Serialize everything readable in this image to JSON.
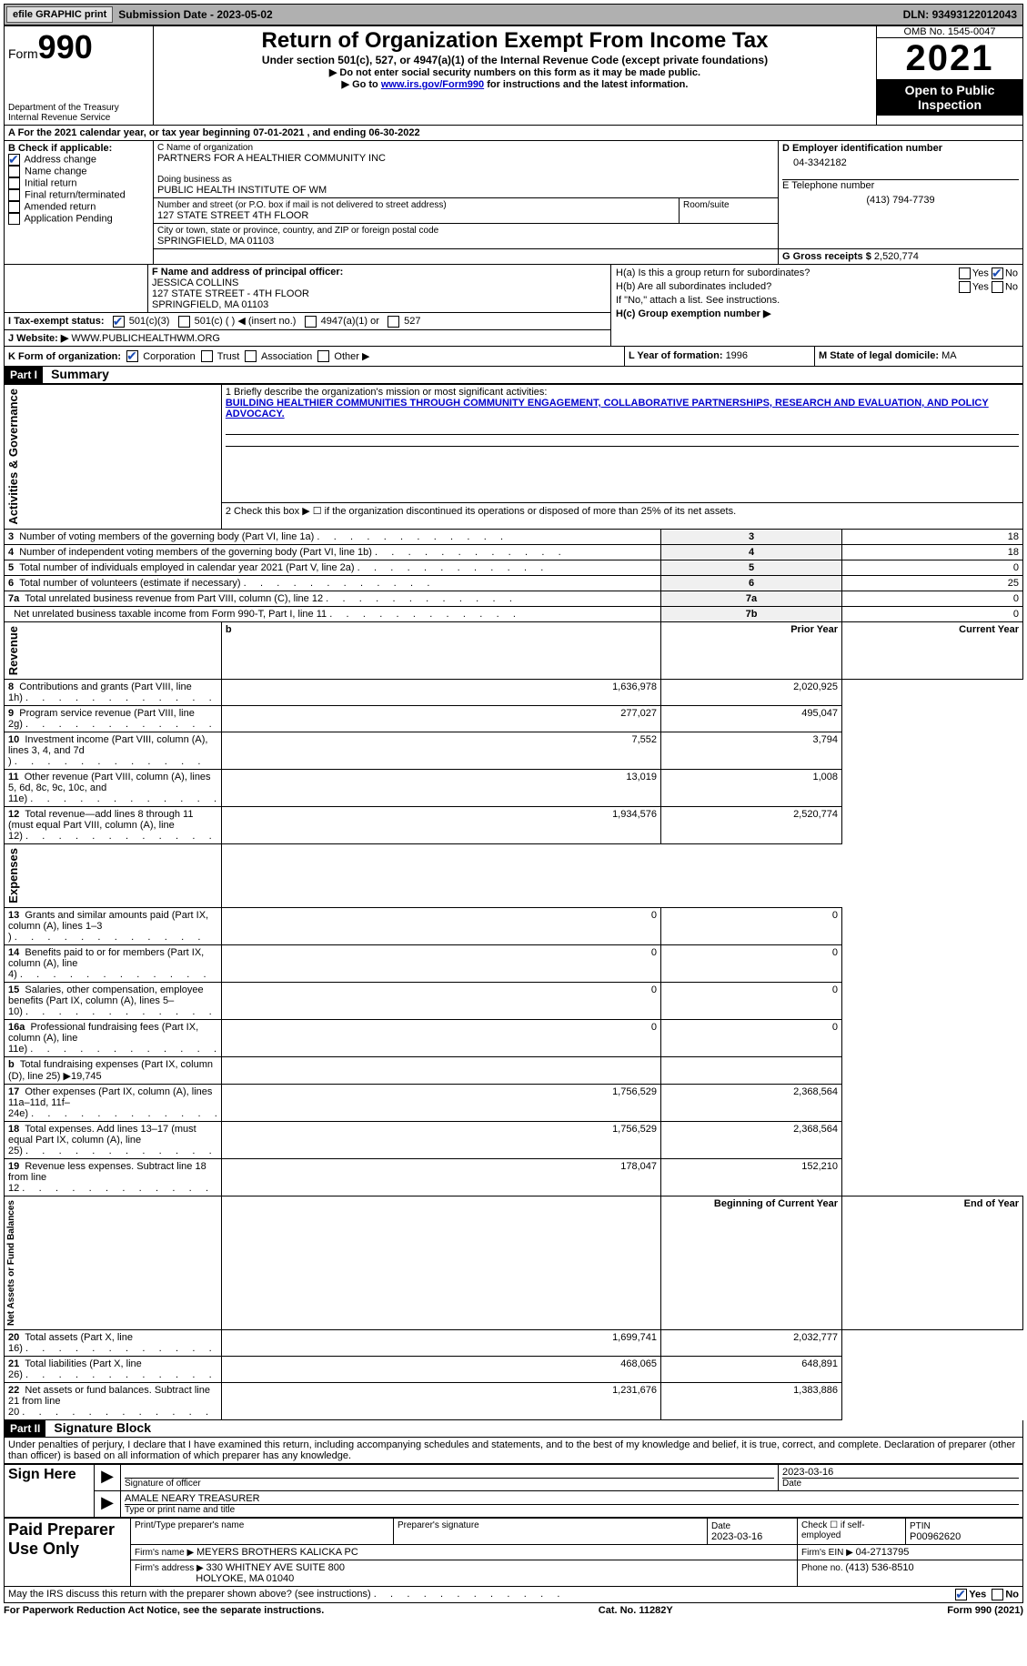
{
  "topbar": {
    "efile": "efile GRAPHIC print",
    "subdate_label": "Submission Date - ",
    "subdate": "2023-05-02",
    "dln_label": "DLN: ",
    "dln": "93493122012043"
  },
  "header": {
    "form_prefix": "Form",
    "form_num": "990",
    "dept": "Department of the Treasury Internal Revenue Service",
    "title": "Return of Organization Exempt From Income Tax",
    "subtitle": "Under section 501(c), 527, or 4947(a)(1) of the Internal Revenue Code (except private foundations)",
    "instr1": "▶ Do not enter social security numbers on this form as it may be made public.",
    "instr2_pre": "▶ Go to ",
    "instr2_link": "www.irs.gov/Form990",
    "instr2_post": " for instructions and the latest information.",
    "omb": "OMB No. 1545-0047",
    "year": "2021",
    "openpub": "Open to Public Inspection"
  },
  "A": {
    "text": "A For the 2021 calendar year, or tax year beginning 07-01-2021    , and ending 06-30-2022"
  },
  "B": {
    "label": "B Check if applicable:",
    "items": [
      {
        "label": "Address change",
        "checked": true
      },
      {
        "label": "Name change",
        "checked": false
      },
      {
        "label": "Initial return",
        "checked": false
      },
      {
        "label": "Final return/terminated",
        "checked": false
      },
      {
        "label": "Amended return",
        "checked": false
      },
      {
        "label": "Application Pending",
        "checked": false
      }
    ]
  },
  "C": {
    "name_label": "C Name of organization",
    "name": "PARTNERS FOR A HEALTHIER COMMUNITY INC",
    "dba_label": "Doing business as",
    "dba": "PUBLIC HEALTH INSTITUTE OF WM",
    "street_label": "Number and street (or P.O. box if mail is not delivered to street address)",
    "street": "127 STATE STREET 4TH FLOOR",
    "room_label": "Room/suite",
    "city_label": "City or town, state or province, country, and ZIP or foreign postal code",
    "city": "SPRINGFIELD, MA  01103"
  },
  "D": {
    "label": "D Employer identification number",
    "val": "04-3342182"
  },
  "E": {
    "label": "E Telephone number",
    "val": "(413) 794-7739"
  },
  "G": {
    "label": "G Gross receipts $ ",
    "val": "2,520,774"
  },
  "F": {
    "label": "F  Name and address of principal officer:",
    "name": "JESSICA COLLINS",
    "addr1": "127 STATE STREET - 4TH FLOOR",
    "addr2": "SPRINGFIELD, MA  01103"
  },
  "H": {
    "a_label": "H(a)  Is this a group return for subordinates?",
    "b_label": "H(b)  Are all subordinates included?",
    "note": "If \"No,\" attach a list. See instructions.",
    "c_label": "H(c)  Group exemption number ▶",
    "yes": "Yes",
    "no": "No"
  },
  "I": {
    "label": "I   Tax-exempt status:",
    "opts": [
      "501(c)(3)",
      "501(c) (   ) ◀ (insert no.)",
      "4947(a)(1) or",
      "527"
    ]
  },
  "J": {
    "label": "J   Website: ▶",
    "val": "  WWW.PUBLICHEALTHWM.ORG"
  },
  "K": {
    "label": "K Form of organization:",
    "opts": [
      "Corporation",
      "Trust",
      "Association",
      "Other ▶"
    ]
  },
  "L": {
    "label": "L Year of formation: ",
    "val": "1996"
  },
  "M": {
    "label": "M State of legal domicile: ",
    "val": "MA"
  },
  "part1": {
    "label": "Part I",
    "title": "Summary"
  },
  "mission_label": "1  Briefly describe the organization's mission or most significant activities:",
  "mission": "BUILDING HEALTHIER COMMUNITIES THROUGH COMMUNITY ENGAGEMENT, COLLABORATIVE PARTNERSHIPS, RESEARCH AND EVALUATION, AND POLICY ADVOCACY.",
  "line2": "2   Check this box ▶ ☐ if the organization discontinued its operations or disposed of more than 25% of its net assets.",
  "gov_rows": [
    {
      "n": "3",
      "t": "Number of voting members of the governing body (Part VI, line 1a)",
      "box": "3",
      "v": "18"
    },
    {
      "n": "4",
      "t": "Number of independent voting members of the governing body (Part VI, line 1b)",
      "box": "4",
      "v": "18"
    },
    {
      "n": "5",
      "t": "Total number of individuals employed in calendar year 2021 (Part V, line 2a)",
      "box": "5",
      "v": "0"
    },
    {
      "n": "6",
      "t": "Total number of volunteers (estimate if necessary)",
      "box": "6",
      "v": "25"
    },
    {
      "n": "7a",
      "t": "Total unrelated business revenue from Part VIII, column (C), line 12",
      "box": "7a",
      "v": "0"
    },
    {
      "n": "",
      "t": "Net unrelated business taxable income from Form 990-T, Part I, line 11",
      "box": "7b",
      "v": "0"
    }
  ],
  "colhdr": {
    "prior": "Prior Year",
    "curr": "Current Year",
    "beg": "Beginning of Current Year",
    "end": "End of Year"
  },
  "rev_label": "Revenue",
  "rev": [
    {
      "n": "8",
      "t": "Contributions and grants (Part VIII, line 1h)",
      "p": "1,636,978",
      "c": "2,020,925"
    },
    {
      "n": "9",
      "t": "Program service revenue (Part VIII, line 2g)",
      "p": "277,027",
      "c": "495,047"
    },
    {
      "n": "10",
      "t": "Investment income (Part VIII, column (A), lines 3, 4, and 7d )",
      "p": "7,552",
      "c": "3,794"
    },
    {
      "n": "11",
      "t": "Other revenue (Part VIII, column (A), lines 5, 6d, 8c, 9c, 10c, and 11e)",
      "p": "13,019",
      "c": "1,008"
    },
    {
      "n": "12",
      "t": "Total revenue—add lines 8 through 11 (must equal Part VIII, column (A), line 12)",
      "p": "1,934,576",
      "c": "2,520,774"
    }
  ],
  "exp_label": "Expenses",
  "exp": [
    {
      "n": "13",
      "t": "Grants and similar amounts paid (Part IX, column (A), lines 1–3 )",
      "p": "0",
      "c": "0"
    },
    {
      "n": "14",
      "t": "Benefits paid to or for members (Part IX, column (A), line 4)",
      "p": "0",
      "c": "0"
    },
    {
      "n": "15",
      "t": "Salaries, other compensation, employee benefits (Part IX, column (A), lines 5–10)",
      "p": "0",
      "c": "0"
    },
    {
      "n": "16a",
      "t": "Professional fundraising fees (Part IX, column (A), line 11e)",
      "p": "0",
      "c": "0"
    },
    {
      "n": "b",
      "t": "Total fundraising expenses (Part IX, column (D), line 25) ▶19,745",
      "p": "",
      "c": "",
      "gray": true
    },
    {
      "n": "17",
      "t": "Other expenses (Part IX, column (A), lines 11a–11d, 11f–24e)",
      "p": "1,756,529",
      "c": "2,368,564"
    },
    {
      "n": "18",
      "t": "Total expenses. Add lines 13–17 (must equal Part IX, column (A), line 25)",
      "p": "1,756,529",
      "c": "2,368,564"
    },
    {
      "n": "19",
      "t": "Revenue less expenses. Subtract line 18 from line 12",
      "p": "178,047",
      "c": "152,210"
    }
  ],
  "net_label": "Net Assets or Fund Balances",
  "net": [
    {
      "n": "20",
      "t": "Total assets (Part X, line 16)",
      "p": "1,699,741",
      "c": "2,032,777"
    },
    {
      "n": "21",
      "t": "Total liabilities (Part X, line 26)",
      "p": "468,065",
      "c": "648,891"
    },
    {
      "n": "22",
      "t": "Net assets or fund balances. Subtract line 21 from line 20",
      "p": "1,231,676",
      "c": "1,383,886"
    }
  ],
  "part2": {
    "label": "Part II",
    "title": "Signature Block"
  },
  "penalties": "Under penalties of perjury, I declare that I have examined this return, including accompanying schedules and statements, and to the best of my knowledge and belief, it is true, correct, and complete. Declaration of preparer (other than officer) is based on all information of which preparer has any knowledge.",
  "sign": {
    "here": "Sign Here",
    "sig_label": "Signature of officer",
    "date": "2023-03-16",
    "name": "AMALE NEARY  TREASURER",
    "name_label": "Type or print name and title"
  },
  "paid": {
    "title": "Paid Preparer Use Only",
    "col1": "Print/Type preparer's name",
    "col2": "Preparer's signature",
    "col3_l": "Date",
    "col3_v": "2023-03-16",
    "col4": "Check ☐ if self-employed",
    "col5_l": "PTIN",
    "col5_v": "P00962620",
    "firm_l": "Firm's name    ▶ ",
    "firm_v": "MEYERS BROTHERS KALICKA PC",
    "ein_l": "Firm's EIN ▶ ",
    "ein_v": "04-2713795",
    "addr_l": "Firm's address ▶ ",
    "addr_v": "330 WHITNEY AVE SUITE 800",
    "addr_v2": "HOLYOKE, MA  01040",
    "phone_l": "Phone no. ",
    "phone_v": "(413) 536-8510"
  },
  "may_irs": "May the IRS discuss this return with the preparer shown above? (see instructions)",
  "footer": {
    "l": "For Paperwork Reduction Act Notice, see the separate instructions.",
    "c": "Cat. No. 11282Y",
    "r": "Form 990 (2021)"
  },
  "gov_label": "Activities & Governance"
}
